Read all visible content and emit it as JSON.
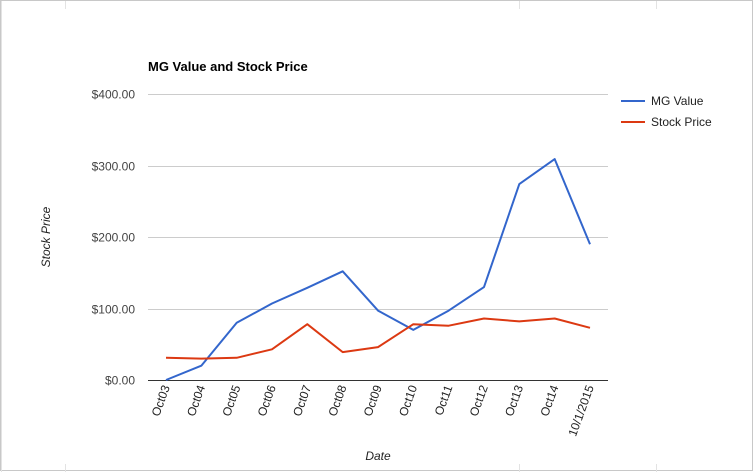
{
  "chart_data": {
    "type": "line",
    "title": "MG Value and Stock Price",
    "xlabel": "Date",
    "ylabel": "Stock Price",
    "categories": [
      "Oct03",
      "Oct04",
      "Oct05",
      "Oct06",
      "Oct07",
      "Oct08",
      "Oct09",
      "Oct10",
      "Oct11",
      "Oct12",
      "Oct13",
      "Oct14",
      "10/1/2015"
    ],
    "ylim": [
      0,
      400
    ],
    "yticks": [
      {
        "value": 0,
        "label": "$0.00"
      },
      {
        "value": 100,
        "label": "$100.00"
      },
      {
        "value": 200,
        "label": "$200.00"
      },
      {
        "value": 300,
        "label": "$300.00"
      },
      {
        "value": 400,
        "label": "$400.00"
      }
    ],
    "grid": true,
    "legend_position": "right",
    "series": [
      {
        "name": "MG Value",
        "color": "#3366cc",
        "values": [
          0,
          20,
          80,
          107,
          129,
          152,
          97,
          70,
          97,
          130,
          274,
          309,
          190
        ]
      },
      {
        "name": "Stock Price",
        "color": "#dc3912",
        "values": [
          31,
          30,
          31,
          43,
          78,
          39,
          46,
          78,
          76,
          86,
          82,
          86,
          73
        ]
      }
    ]
  }
}
